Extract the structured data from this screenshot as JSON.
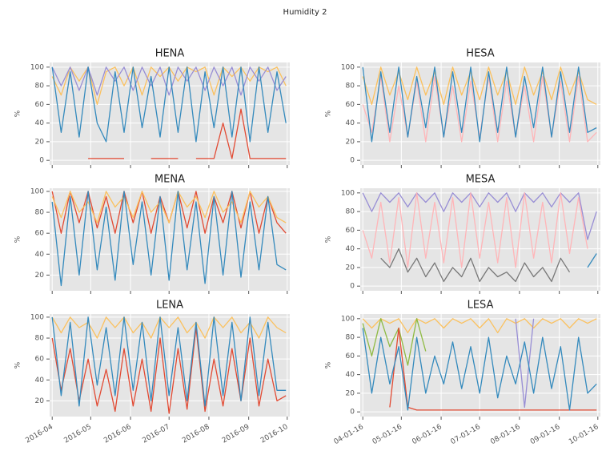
{
  "title": "Humidity 2",
  "chart_data": [
    {
      "type": "line",
      "title": "HENA",
      "ylabel": "%",
      "x": [
        "2016-04-01",
        "2016-04-08",
        "2016-04-15",
        "2016-04-22",
        "2016-04-29",
        "2016-05-06",
        "2016-05-13",
        "2016-05-20",
        "2016-05-27",
        "2016-06-03",
        "2016-06-10",
        "2016-06-17",
        "2016-06-24",
        "2016-07-01",
        "2016-07-08",
        "2016-07-15",
        "2016-07-22",
        "2016-07-29",
        "2016-08-05",
        "2016-08-12",
        "2016-08-19",
        "2016-08-26",
        "2016-09-02",
        "2016-09-09",
        "2016-09-16",
        "2016-09-23",
        "2016-09-30"
      ],
      "xlim": [
        "2016-03-30",
        "2016-10-03"
      ],
      "xticks": [
        "2016-04-01",
        "2016-05-01",
        "2016-06-01",
        "2016-07-01",
        "2016-08-01",
        "2016-09-01",
        "2016-10-01"
      ],
      "show_xtick_labels": false,
      "ylim": [
        -5,
        105
      ],
      "yticks": [
        0,
        20,
        40,
        60,
        80,
        100
      ],
      "grid": true,
      "series": [
        {
          "color": "#E24A33",
          "values": [
            null,
            null,
            null,
            null,
            2,
            2,
            2,
            2,
            2,
            null,
            null,
            2,
            2,
            2,
            2,
            null,
            2,
            2,
            2,
            40,
            2,
            55,
            2,
            2,
            2,
            2,
            2
          ]
        },
        {
          "color": "#FBC15E",
          "values": [
            90,
            70,
            100,
            85,
            100,
            60,
            95,
            100,
            80,
            100,
            70,
            100,
            90,
            100,
            85,
            100,
            95,
            100,
            70,
            100,
            90,
            100,
            85,
            100,
            95,
            100,
            80
          ]
        },
        {
          "color": "#988ED5",
          "values": [
            100,
            80,
            100,
            75,
            100,
            70,
            100,
            85,
            100,
            75,
            100,
            80,
            100,
            70,
            100,
            85,
            100,
            75,
            100,
            80,
            100,
            70,
            100,
            85,
            100,
            75,
            90
          ]
        },
        {
          "color": "#348ABD",
          "values": [
            100,
            30,
            95,
            25,
            100,
            40,
            20,
            95,
            30,
            100,
            35,
            90,
            25,
            100,
            30,
            100,
            20,
            95,
            35,
            100,
            25,
            100,
            20,
            100,
            30,
            95,
            40
          ]
        }
      ]
    },
    {
      "type": "line",
      "title": "HESA",
      "ylabel": "%",
      "x": [
        "2016-04-01",
        "2016-04-08",
        "2016-04-15",
        "2016-04-22",
        "2016-04-29",
        "2016-05-06",
        "2016-05-13",
        "2016-05-20",
        "2016-05-27",
        "2016-06-03",
        "2016-06-10",
        "2016-06-17",
        "2016-06-24",
        "2016-07-01",
        "2016-07-08",
        "2016-07-15",
        "2016-07-22",
        "2016-07-29",
        "2016-08-05",
        "2016-08-12",
        "2016-08-19",
        "2016-08-26",
        "2016-09-02",
        "2016-09-09",
        "2016-09-16",
        "2016-09-23",
        "2016-09-30"
      ],
      "xlim": [
        "2016-03-30",
        "2016-10-03"
      ],
      "xticks": [
        "2016-04-01",
        "2016-05-01",
        "2016-06-01",
        "2016-07-01",
        "2016-08-01",
        "2016-09-01",
        "2016-10-01"
      ],
      "show_xtick_labels": false,
      "ylim": [
        -5,
        105
      ],
      "yticks": [
        0,
        20,
        40,
        60,
        80,
        100
      ],
      "grid": true,
      "series": [
        {
          "color": "#FFB5B8",
          "values": [
            60,
            30,
            90,
            20,
            80,
            25,
            85,
            20,
            90,
            25,
            80,
            20,
            85,
            25,
            90,
            20,
            85,
            25,
            80,
            20,
            90,
            25,
            85,
            20,
            90,
            20,
            30
          ]
        },
        {
          "color": "#FBC15E",
          "values": [
            90,
            60,
            100,
            70,
            95,
            65,
            100,
            70,
            95,
            60,
            100,
            70,
            95,
            65,
            100,
            70,
            95,
            60,
            100,
            70,
            95,
            65,
            100,
            70,
            95,
            65,
            60
          ]
        },
        {
          "color": "#348ABD",
          "values": [
            100,
            20,
            95,
            30,
            100,
            25,
            90,
            35,
            100,
            25,
            95,
            30,
            100,
            20,
            95,
            30,
            100,
            25,
            90,
            35,
            100,
            25,
            95,
            30,
            100,
            30,
            35
          ]
        }
      ]
    },
    {
      "type": "line",
      "title": "MENA",
      "ylabel": "%",
      "x": [
        "2016-04-01",
        "2016-04-08",
        "2016-04-15",
        "2016-04-22",
        "2016-04-29",
        "2016-05-06",
        "2016-05-13",
        "2016-05-20",
        "2016-05-27",
        "2016-06-03",
        "2016-06-10",
        "2016-06-17",
        "2016-06-24",
        "2016-07-01",
        "2016-07-08",
        "2016-07-15",
        "2016-07-22",
        "2016-07-29",
        "2016-08-05",
        "2016-08-12",
        "2016-08-19",
        "2016-08-26",
        "2016-09-02",
        "2016-09-09",
        "2016-09-16",
        "2016-09-23",
        "2016-09-30"
      ],
      "xlim": [
        "2016-03-30",
        "2016-10-03"
      ],
      "xticks": [
        "2016-04-01",
        "2016-05-01",
        "2016-06-01",
        "2016-07-01",
        "2016-08-01",
        "2016-09-01",
        "2016-10-01"
      ],
      "show_xtick_labels": false,
      "ylim": [
        5,
        103
      ],
      "yticks": [
        20,
        40,
        60,
        80,
        100
      ],
      "grid": true,
      "series": [
        {
          "color": "#E24A33",
          "values": [
            100,
            60,
            100,
            70,
            100,
            65,
            95,
            60,
            100,
            70,
            100,
            60,
            95,
            70,
            100,
            65,
            100,
            60,
            95,
            70,
            100,
            65,
            100,
            60,
            95,
            70,
            60
          ]
        },
        {
          "color": "#FBC15E",
          "values": [
            95,
            75,
            100,
            80,
            90,
            70,
            100,
            85,
            95,
            75,
            100,
            80,
            90,
            70,
            100,
            85,
            95,
            75,
            100,
            80,
            90,
            70,
            100,
            85,
            95,
            75,
            70
          ]
        },
        {
          "color": "#348ABD",
          "values": [
            90,
            10,
            95,
            20,
            100,
            25,
            85,
            15,
            100,
            30,
            90,
            20,
            95,
            15,
            100,
            25,
            90,
            12,
            95,
            20,
            100,
            18,
            90,
            25,
            95,
            30,
            25
          ]
        }
      ]
    },
    {
      "type": "line",
      "title": "MESA",
      "ylabel": "%",
      "x": [
        "2016-04-01",
        "2016-04-08",
        "2016-04-15",
        "2016-04-22",
        "2016-04-29",
        "2016-05-06",
        "2016-05-13",
        "2016-05-20",
        "2016-05-27",
        "2016-06-03",
        "2016-06-10",
        "2016-06-17",
        "2016-06-24",
        "2016-07-01",
        "2016-07-08",
        "2016-07-15",
        "2016-07-22",
        "2016-07-29",
        "2016-08-05",
        "2016-08-12",
        "2016-08-19",
        "2016-08-26",
        "2016-09-02",
        "2016-09-09",
        "2016-09-16",
        "2016-09-23",
        "2016-09-30"
      ],
      "xlim": [
        "2016-03-30",
        "2016-10-03"
      ],
      "xticks": [
        "2016-04-01",
        "2016-05-01",
        "2016-06-01",
        "2016-07-01",
        "2016-08-01",
        "2016-09-01",
        "2016-10-01"
      ],
      "show_xtick_labels": false,
      "ylim": [
        -5,
        105
      ],
      "yticks": [
        0,
        20,
        40,
        60,
        80,
        100
      ],
      "grid": true,
      "series": [
        {
          "color": "#777777",
          "values": [
            null,
            null,
            30,
            20,
            40,
            15,
            30,
            10,
            25,
            5,
            20,
            10,
            30,
            5,
            20,
            10,
            15,
            5,
            25,
            10,
            20,
            5,
            30,
            15,
            null,
            null,
            null
          ]
        },
        {
          "color": "#988ED5",
          "values": [
            100,
            80,
            100,
            90,
            100,
            85,
            100,
            90,
            100,
            80,
            100,
            90,
            100,
            85,
            100,
            90,
            100,
            80,
            100,
            90,
            100,
            85,
            100,
            90,
            100,
            50,
            80
          ]
        },
        {
          "color": "#FFB5B8",
          "values": [
            60,
            30,
            90,
            25,
            95,
            20,
            100,
            30,
            90,
            25,
            95,
            20,
            100,
            30,
            90,
            25,
            95,
            20,
            100,
            30,
            90,
            25,
            100,
            35,
            95,
            40,
            null
          ]
        },
        {
          "color": "#348ABD",
          "values": [
            null,
            null,
            null,
            null,
            null,
            null,
            null,
            null,
            null,
            null,
            null,
            null,
            null,
            null,
            null,
            null,
            null,
            null,
            null,
            null,
            null,
            null,
            null,
            null,
            null,
            20,
            35
          ]
        }
      ]
    },
    {
      "type": "line",
      "title": "LENA",
      "ylabel": "%",
      "x": [
        "2016-04-01",
        "2016-04-08",
        "2016-04-15",
        "2016-04-22",
        "2016-04-29",
        "2016-05-06",
        "2016-05-13",
        "2016-05-20",
        "2016-05-27",
        "2016-06-03",
        "2016-06-10",
        "2016-06-17",
        "2016-06-24",
        "2016-07-01",
        "2016-07-08",
        "2016-07-15",
        "2016-07-22",
        "2016-07-29",
        "2016-08-05",
        "2016-08-12",
        "2016-08-19",
        "2016-08-26",
        "2016-09-02",
        "2016-09-09",
        "2016-09-16",
        "2016-09-23",
        "2016-09-30"
      ],
      "xlim": [
        "2016-03-30",
        "2016-10-03"
      ],
      "xticks": [
        {
          "value": "2016-04-01",
          "label": "2016-04"
        },
        {
          "value": "2016-05-01",
          "label": "2016-05"
        },
        {
          "value": "2016-06-01",
          "label": "2016-06"
        },
        {
          "value": "2016-07-01",
          "label": "2016-07"
        },
        {
          "value": "2016-08-01",
          "label": "2016-08"
        },
        {
          "value": "2016-09-01",
          "label": "2016-09"
        },
        {
          "value": "2016-10-01",
          "label": "2016-10"
        }
      ],
      "show_xtick_labels": true,
      "ylim": [
        5,
        103
      ],
      "yticks": [
        20,
        40,
        60,
        80,
        100
      ],
      "grid": true,
      "series": [
        {
          "color": "#FBC15E",
          "values": [
            100,
            85,
            100,
            90,
            95,
            80,
            100,
            90,
            100,
            85,
            95,
            80,
            100,
            90,
            100,
            85,
            95,
            80,
            100,
            90,
            100,
            85,
            95,
            80,
            100,
            90,
            85
          ]
        },
        {
          "color": "#E24A33",
          "values": [
            80,
            30,
            70,
            20,
            60,
            15,
            50,
            10,
            70,
            15,
            60,
            10,
            80,
            8,
            70,
            12,
            90,
            10,
            60,
            15,
            70,
            20,
            80,
            15,
            60,
            20,
            25
          ]
        },
        {
          "color": "#348ABD",
          "values": [
            100,
            25,
            95,
            15,
            100,
            35,
            90,
            25,
            100,
            30,
            95,
            20,
            100,
            25,
            90,
            20,
            95,
            15,
            100,
            25,
            95,
            20,
            100,
            25,
            95,
            30,
            30
          ]
        }
      ]
    },
    {
      "type": "line",
      "title": "LESA",
      "ylabel": "%",
      "x": [
        "2016-04-01",
        "2016-04-08",
        "2016-04-15",
        "2016-04-22",
        "2016-04-29",
        "2016-05-06",
        "2016-05-13",
        "2016-05-20",
        "2016-05-27",
        "2016-06-03",
        "2016-06-10",
        "2016-06-17",
        "2016-06-24",
        "2016-07-01",
        "2016-07-08",
        "2016-07-15",
        "2016-07-22",
        "2016-07-29",
        "2016-08-05",
        "2016-08-12",
        "2016-08-19",
        "2016-08-26",
        "2016-09-02",
        "2016-09-09",
        "2016-09-16",
        "2016-09-23",
        "2016-09-30"
      ],
      "xlim": [
        "2016-03-30",
        "2016-10-03"
      ],
      "xticks": [
        {
          "value": "2016-04-01",
          "label": "04-01-16"
        },
        {
          "value": "2016-05-01",
          "label": "05-01-16"
        },
        {
          "value": "2016-06-01",
          "label": "06-01-16"
        },
        {
          "value": "2016-07-01",
          "label": "07-01-16"
        },
        {
          "value": "2016-08-01",
          "label": "08-01-16"
        },
        {
          "value": "2016-09-01",
          "label": "09-01-16"
        },
        {
          "value": "2016-10-01",
          "label": "10-01-16"
        }
      ],
      "show_xtick_labels": true,
      "ylim": [
        -5,
        105
      ],
      "yticks": [
        0,
        20,
        40,
        60,
        80,
        100
      ],
      "grid": true,
      "series": [
        {
          "color": "#FBC15E",
          "values": [
            100,
            90,
            100,
            95,
            100,
            85,
            100,
            95,
            100,
            90,
            100,
            95,
            100,
            90,
            100,
            85,
            100,
            95,
            100,
            90,
            100,
            95,
            100,
            90,
            100,
            95,
            100
          ]
        },
        {
          "color": "#8EBA42",
          "values": [
            95,
            60,
            100,
            70,
            90,
            50,
            100,
            65,
            null,
            null,
            null,
            null,
            null,
            null,
            null,
            null,
            null,
            null,
            null,
            null,
            null,
            null,
            null,
            null,
            null,
            null,
            null
          ]
        },
        {
          "color": "#988ED5",
          "values": [
            null,
            null,
            null,
            null,
            null,
            null,
            null,
            null,
            null,
            null,
            null,
            null,
            null,
            null,
            null,
            null,
            null,
            100,
            5,
            100,
            null,
            null,
            null,
            null,
            null,
            null,
            null
          ]
        },
        {
          "color": "#E24A33",
          "values": [
            null,
            null,
            null,
            5,
            90,
            5,
            2,
            2,
            2,
            2,
            2,
            2,
            2,
            2,
            2,
            2,
            2,
            2,
            2,
            2,
            2,
            2,
            2,
            2,
            2,
            2,
            2
          ]
        },
        {
          "color": "#348ABD",
          "values": [
            90,
            20,
            80,
            30,
            70,
            2,
            80,
            20,
            60,
            30,
            75,
            25,
            70,
            20,
            80,
            15,
            60,
            30,
            75,
            20,
            80,
            25,
            70,
            2,
            80,
            20,
            30
          ]
        }
      ]
    }
  ]
}
